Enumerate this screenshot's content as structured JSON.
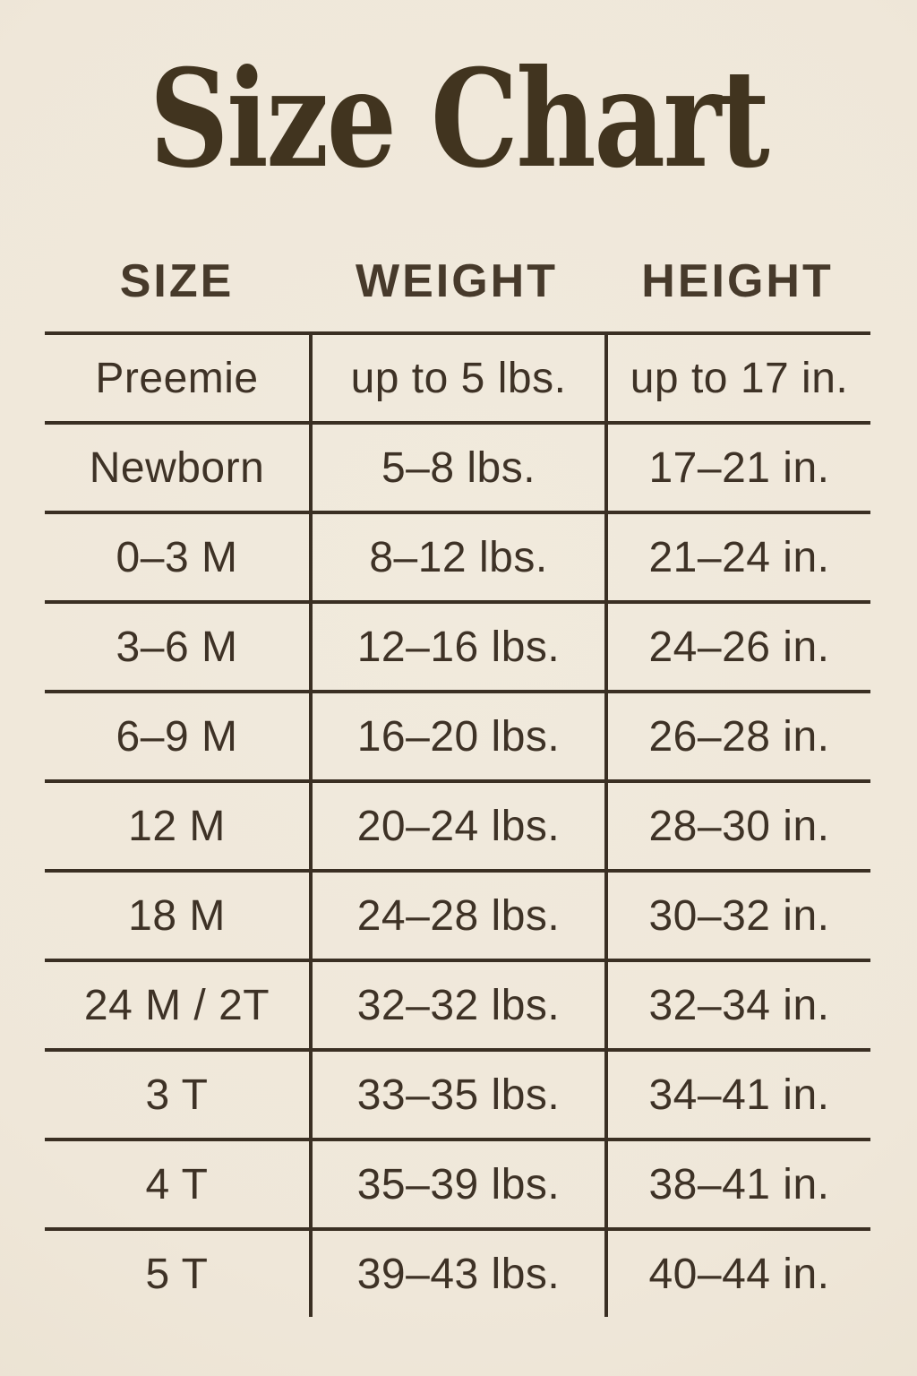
{
  "colors": {
    "background": "#EFE7D9",
    "ink": "#3E3226",
    "line": "#3A2F23",
    "title_ink": "#41341F"
  },
  "chart_data": {
    "type": "table",
    "title": "Size Chart",
    "columns": [
      "SIZE",
      "WEIGHT",
      "HEIGHT"
    ],
    "rows": [
      {
        "size": "Preemie",
        "weight": "up to 5 lbs.",
        "height": "up to 17 in."
      },
      {
        "size": "Newborn",
        "weight": "5–8 lbs.",
        "height": "17–21 in."
      },
      {
        "size": "0–3 M",
        "weight": "8–12 lbs.",
        "height": "21–24 in."
      },
      {
        "size": "3–6 M",
        "weight": "12–16 lbs.",
        "height": "24–26 in."
      },
      {
        "size": "6–9 M",
        "weight": "16–20 lbs.",
        "height": "26–28 in."
      },
      {
        "size": "12 M",
        "weight": "20–24 lbs.",
        "height": "28–30 in."
      },
      {
        "size": "18 M",
        "weight": "24–28 lbs.",
        "height": "30–32 in."
      },
      {
        "size": "24 M / 2T",
        "weight": "32–32 lbs.",
        "height": "32–34 in."
      },
      {
        "size": "3 T",
        "weight": "33–35 lbs.",
        "height": "34–41 in."
      },
      {
        "size": "4 T",
        "weight": "35–39 lbs.",
        "height": "38–41 in."
      },
      {
        "size": "5 T",
        "weight": "39–43 lbs.",
        "height": "40–44 in."
      }
    ]
  }
}
